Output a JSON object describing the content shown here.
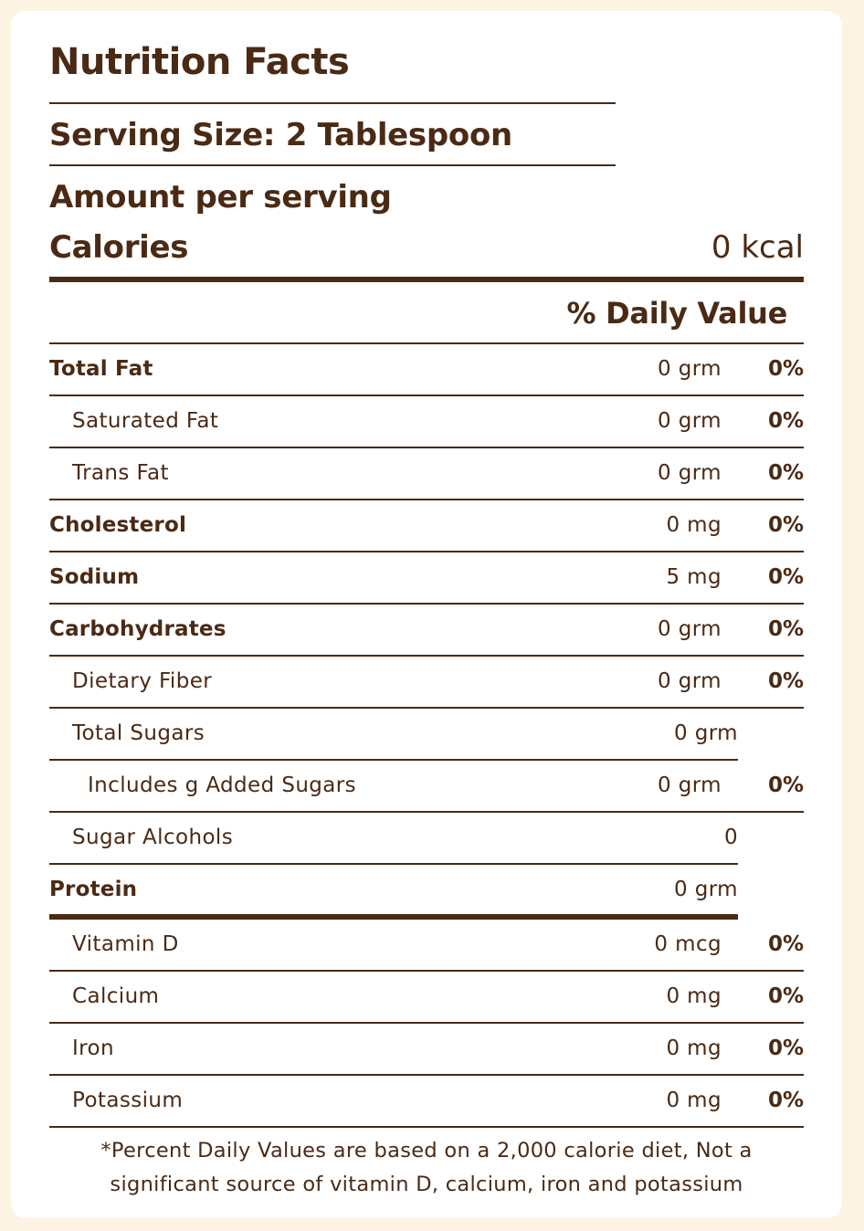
{
  "title": "Nutrition Facts",
  "serving_size": "Serving Size: 2 Tablespoon",
  "amount_per_serving": "Amount per serving",
  "calories": {
    "label": "Calories",
    "value": "0 kcal"
  },
  "daily_value_header": "% Daily Value",
  "nutrients": [
    {
      "name": "Total Fat",
      "amount": "0 grm",
      "dv": "0%"
    },
    {
      "name": "Saturated Fat",
      "amount": "0 grm",
      "dv": "0%"
    },
    {
      "name": "Trans Fat",
      "amount": "0 grm",
      "dv": "0%"
    },
    {
      "name": "Cholesterol",
      "amount": "0 mg",
      "dv": "0%"
    },
    {
      "name": "Sodium",
      "amount": "5 mg",
      "dv": "0%"
    },
    {
      "name": "Carbohydrates",
      "amount": "0 grm",
      "dv": "0%"
    },
    {
      "name": "Dietary Fiber",
      "amount": "0 grm",
      "dv": "0%"
    },
    {
      "name": "Total Sugars",
      "amount": "0 grm"
    },
    {
      "name": "Includes g Added Sugars",
      "amount": "0 grm",
      "dv": "0%"
    },
    {
      "name": "Sugar Alcohols",
      "amount": "0"
    },
    {
      "name": "Protein",
      "amount": "0 grm"
    },
    {
      "name": "Vitamin D",
      "amount": "0 mcg",
      "dv": "0%"
    },
    {
      "name": "Calcium",
      "amount": "0 mg",
      "dv": "0%"
    },
    {
      "name": "Iron",
      "amount": "0 mg",
      "dv": "0%"
    },
    {
      "name": "Potassium",
      "amount": "0 mg",
      "dv": "0%"
    }
  ],
  "footnote_line1": "*Percent Daily Values are based on a 2,000 calorie diet, Not a",
  "footnote_line2": "significant source of vitamin D, calcium, iron and potassium"
}
